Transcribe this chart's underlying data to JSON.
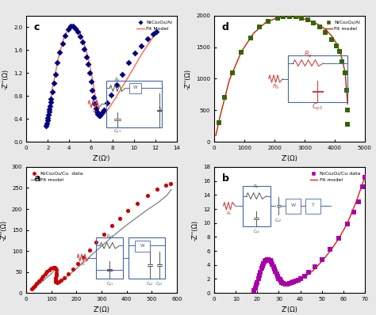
{
  "panel_a": {
    "title": "a",
    "scatter_color": "#cc0000",
    "line_color": "#888888",
    "label_data": "NiCo₂O₄/Cu  data",
    "label_fit": "Fit model",
    "xlabel": "Z'(Ω)",
    "ylabel": "-Z''(Ω)",
    "xlim": [
      0,
      600
    ],
    "ylim": [
      0,
      300
    ],
    "xticks": [
      0,
      100,
      200,
      300,
      400,
      500,
      600
    ],
    "yticks": [
      0,
      50,
      100,
      150,
      200,
      250,
      300
    ],
    "scatter_x": [
      22,
      28,
      35,
      42,
      50,
      58,
      66,
      74,
      82,
      90,
      98,
      106,
      112,
      116,
      119,
      121,
      120,
      118,
      115,
      118,
      122,
      130,
      140,
      152,
      168,
      186,
      206,
      228,
      252,
      278,
      308,
      340,
      372,
      406,
      444,
      484,
      522,
      556,
      576
    ],
    "scatter_y": [
      10,
      13,
      17,
      22,
      28,
      34,
      40,
      46,
      51,
      55,
      58,
      60,
      60,
      58,
      54,
      48,
      42,
      36,
      30,
      26,
      24,
      26,
      30,
      37,
      46,
      57,
      70,
      85,
      102,
      120,
      140,
      160,
      178,
      196,
      214,
      232,
      247,
      256,
      260
    ],
    "fit_x": [
      22,
      40,
      60,
      80,
      100,
      110,
      118,
      122,
      118,
      115,
      120,
      130,
      148,
      170,
      198,
      230,
      265,
      305,
      345,
      390,
      435,
      480,
      525,
      560,
      578
    ],
    "fit_y": [
      8,
      16,
      25,
      36,
      46,
      54,
      59,
      60,
      50,
      38,
      28,
      26,
      32,
      43,
      57,
      74,
      93,
      114,
      135,
      157,
      177,
      197,
      215,
      232,
      246
    ]
  },
  "panel_b": {
    "title": "b",
    "scatter_color": "#aa00aa",
    "line_color": "#dd2200",
    "label_data": "NiCo₂O₄/Cu data",
    "label_fit": "Fit model",
    "xlabel": "Z'(Ω)",
    "ylabel": "-Z''(Ω)",
    "xlim": [
      0,
      70
    ],
    "ylim": [
      0,
      18
    ],
    "xticks": [
      0,
      10,
      20,
      30,
      40,
      50,
      60,
      70
    ],
    "yticks": [
      0,
      2,
      4,
      6,
      8,
      10,
      12,
      14,
      16,
      18
    ],
    "scatter_x": [
      18.5,
      19,
      19.5,
      20,
      20.5,
      21,
      21.5,
      22,
      22.5,
      23,
      23.5,
      24,
      24.5,
      25,
      25.5,
      26,
      26.5,
      27,
      27.5,
      28,
      28.5,
      29,
      29.5,
      30,
      30.5,
      31,
      31.5,
      32,
      33,
      34,
      35,
      36,
      37,
      38,
      39,
      40,
      42,
      44,
      47,
      50,
      54,
      58,
      62,
      65,
      67,
      69,
      70
    ],
    "scatter_y": [
      0.4,
      0.7,
      1.1,
      1.5,
      2.0,
      2.5,
      3.0,
      3.5,
      3.9,
      4.2,
      4.5,
      4.7,
      4.8,
      4.8,
      4.7,
      4.6,
      4.4,
      4.1,
      3.8,
      3.4,
      3.1,
      2.7,
      2.4,
      2.1,
      1.9,
      1.7,
      1.5,
      1.4,
      1.3,
      1.3,
      1.4,
      1.5,
      1.6,
      1.7,
      1.8,
      2.0,
      2.4,
      2.9,
      3.7,
      4.8,
      6.2,
      7.8,
      9.8,
      11.6,
      13.0,
      15.2,
      16.5
    ],
    "fit_x": [
      18.5,
      20,
      22,
      24,
      26,
      28,
      30,
      32,
      34,
      36,
      38,
      40,
      43,
      46,
      50,
      54,
      58,
      62,
      66,
      70
    ],
    "fit_y": [
      0.3,
      1.5,
      3.2,
      4.5,
      4.5,
      3.5,
      2.1,
      1.4,
      1.3,
      1.4,
      1.6,
      1.9,
      2.5,
      3.2,
      4.5,
      6.0,
      7.8,
      10.0,
      13.0,
      16.5
    ]
  },
  "panel_c": {
    "title": "c",
    "scatter_color": "#000080",
    "line_color": "#ff6644",
    "label_data": "NiCo₂O₄/Al",
    "label_fit": "Fit Model",
    "xlabel": "Z'(Ωᴵ)",
    "ylabel": "-Z''(Ω)",
    "xlim": [
      0,
      14
    ],
    "ylim": [
      0,
      2.2
    ],
    "xticks": [
      0,
      2,
      4,
      6,
      8,
      10,
      12,
      14
    ],
    "yticks": [
      0.0,
      0.4,
      0.8,
      1.2,
      1.6,
      2.0
    ],
    "scatter_x": [
      1.85,
      1.9,
      1.95,
      2.0,
      2.05,
      2.1,
      2.15,
      2.2,
      2.25,
      2.3,
      2.4,
      2.55,
      2.7,
      2.9,
      3.1,
      3.35,
      3.6,
      3.9,
      4.1,
      4.35,
      4.6,
      4.8,
      5.0,
      5.2,
      5.4,
      5.6,
      5.75,
      5.9,
      6.05,
      6.15,
      6.25,
      6.35,
      6.45,
      6.55,
      6.65,
      6.75,
      6.85,
      6.95,
      7.05,
      7.2,
      7.5,
      7.9,
      8.4,
      8.9,
      9.5,
      10.1,
      10.7,
      11.3,
      11.8,
      12.1
    ],
    "scatter_y": [
      0.28,
      0.32,
      0.37,
      0.42,
      0.47,
      0.52,
      0.57,
      0.63,
      0.69,
      0.75,
      0.87,
      1.03,
      1.18,
      1.38,
      1.56,
      1.72,
      1.86,
      1.97,
      2.02,
      2.02,
      1.98,
      1.92,
      1.84,
      1.74,
      1.62,
      1.48,
      1.35,
      1.2,
      1.05,
      0.9,
      0.78,
      0.66,
      0.58,
      0.52,
      0.48,
      0.46,
      0.46,
      0.48,
      0.51,
      0.56,
      0.68,
      0.82,
      1.0,
      1.18,
      1.38,
      1.55,
      1.68,
      1.8,
      1.88,
      1.92
    ],
    "fit_x": [
      1.85,
      2.1,
      2.5,
      3.0,
      3.5,
      4.0,
      4.5,
      5.0,
      5.5,
      5.9,
      6.2,
      6.4,
      6.6,
      6.8,
      7.1,
      7.6,
      8.3,
      9.1,
      9.9,
      10.7,
      11.4,
      12.0
    ],
    "fit_y": [
      0.26,
      0.55,
      1.0,
      1.48,
      1.82,
      2.0,
      2.02,
      1.9,
      1.65,
      1.35,
      1.05,
      0.82,
      0.62,
      0.48,
      0.46,
      0.56,
      0.76,
      1.01,
      1.26,
      1.52,
      1.72,
      1.88
    ]
  },
  "panel_d": {
    "title": "d",
    "scatter_color": "#336600",
    "line_color": "#cc2200",
    "label_data": "NiCo₂O₄/Al",
    "label_fit": "Fit model",
    "xlabel": "Z'(Ω)",
    "ylabel": "-Z''(Ω)",
    "xlim": [
      0,
      5000
    ],
    "ylim": [
      0,
      2000
    ],
    "xticks": [
      0,
      1000,
      2000,
      3000,
      4000,
      5000
    ],
    "yticks": [
      0,
      500,
      1000,
      1500,
      2000
    ],
    "scatter_x": [
      150,
      350,
      600,
      900,
      1200,
      1500,
      1800,
      2100,
      2300,
      2500,
      2700,
      2900,
      3100,
      3300,
      3500,
      3700,
      3900,
      4050,
      4150,
      4250,
      4350,
      4400,
      4420,
      4430
    ],
    "scatter_y": [
      300,
      700,
      1100,
      1420,
      1650,
      1820,
      1910,
      1960,
      1980,
      1990,
      1980,
      1960,
      1930,
      1880,
      1820,
      1740,
      1620,
      1520,
      1430,
      1270,
      1100,
      820,
      500,
      280
    ],
    "fit_x": [
      50,
      200,
      500,
      900,
      1300,
      1700,
      2100,
      2500,
      2900,
      3200,
      3500,
      3700,
      3900,
      4050,
      4200,
      4350,
      4430
    ],
    "fit_y": [
      100,
      420,
      980,
      1430,
      1720,
      1890,
      1970,
      1990,
      1960,
      1920,
      1850,
      1780,
      1680,
      1570,
      1400,
      1100,
      600
    ]
  },
  "bg_color": "#e8e8e8",
  "panel_bg": "#ffffff"
}
